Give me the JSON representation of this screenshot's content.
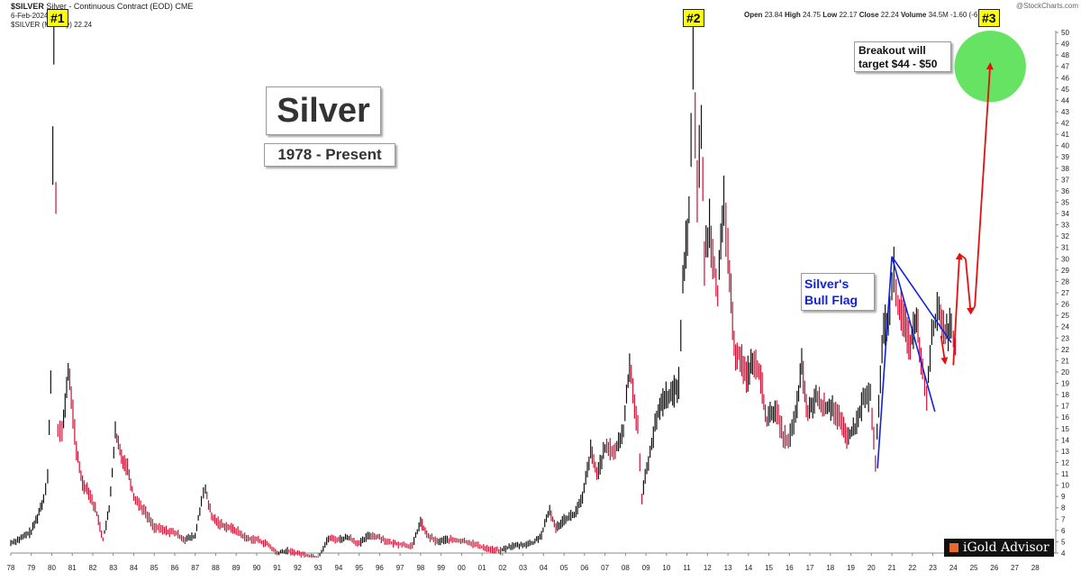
{
  "header": {
    "symbol": "$SILVER",
    "description": "Silver - Continuous Contract (EOD)",
    "exchange": "CME",
    "date": "6-Feb-2024",
    "series_label": "$SILVER (Monthly) 22.24",
    "open_label": "Open",
    "open_value": "23.84",
    "high_label": "High",
    "high_value": "24.75",
    "low_label": "Low",
    "low_value": "22.17",
    "close_label": "Close",
    "close_value": "22.24",
    "volume_label": "Volume",
    "volume_value": "34.5M",
    "change": "-1.60 (-6.71%)",
    "source": "@StockCharts.com"
  },
  "annotations": {
    "title": "Silver",
    "subtitle": "1978 - Present",
    "target_text_1": "Breakout will",
    "target_text_2": "target $44 - $50",
    "flag_text_1": "Silver's",
    "flag_text_2": "Bull Flag",
    "marker_1": "#1",
    "marker_2": "#2",
    "marker_3": "#3"
  },
  "logo_text": "iGold Advisor",
  "colors": {
    "up": "#111111",
    "down": "#cc1133",
    "flag": "#1122dd",
    "projection": "#e21111",
    "target": "#5ee25a",
    "marker_bg": "#ffff00"
  },
  "chart_data": {
    "type": "line",
    "xlabel": "",
    "ylabel": "",
    "x_ticks": [
      "78",
      "79",
      "80",
      "81",
      "82",
      "83",
      "84",
      "85",
      "86",
      "87",
      "88",
      "89",
      "90",
      "91",
      "92",
      "93",
      "94",
      "95",
      "96",
      "97",
      "98",
      "99",
      "00",
      "01",
      "02",
      "03",
      "04",
      "05",
      "06",
      "07",
      "08",
      "09",
      "10",
      "11",
      "12",
      "13",
      "14",
      "15",
      "16",
      "17",
      "18",
      "19",
      "20",
      "21",
      "22",
      "23",
      "24",
      "25",
      "26",
      "27",
      "28"
    ],
    "y_ticks": [
      4,
      5,
      6,
      7,
      8,
      9,
      10,
      11,
      12,
      13,
      14,
      15,
      16,
      17,
      18,
      19,
      20,
      21,
      22,
      23,
      24,
      25,
      26,
      27,
      28,
      29,
      30,
      31,
      32,
      33,
      34,
      35,
      36,
      37,
      38,
      39,
      40,
      41,
      42,
      43,
      44,
      45,
      46,
      47,
      48,
      49,
      50
    ],
    "ylim": [
      4,
      50
    ],
    "xlim": [
      1978,
      2029
    ],
    "grid": false,
    "series": [
      {
        "values": [
          [
            1978.0,
            4.9
          ],
          [
            1978.5,
            5.3
          ],
          [
            1979.0,
            5.9
          ],
          [
            1979.3,
            7.2
          ],
          [
            1979.6,
            8.8
          ],
          [
            1979.8,
            11.0
          ],
          [
            1979.95,
            19.0
          ],
          [
            1980.05,
            39.0
          ],
          [
            1980.1,
            49.0
          ],
          [
            1980.2,
            35.0
          ],
          [
            1980.3,
            15.0
          ],
          [
            1980.5,
            14.5
          ],
          [
            1980.8,
            20.0
          ],
          [
            1980.95,
            18.0
          ],
          [
            1981.2,
            13.0
          ],
          [
            1981.5,
            10.2
          ],
          [
            1981.8,
            9.5
          ],
          [
            1982.2,
            7.5
          ],
          [
            1982.5,
            5.2
          ],
          [
            1982.8,
            7.8
          ],
          [
            1983.1,
            14.6
          ],
          [
            1983.4,
            12.5
          ],
          [
            1983.7,
            11.6
          ],
          [
            1984.0,
            9.0
          ],
          [
            1984.5,
            7.8
          ],
          [
            1985.0,
            6.3
          ],
          [
            1985.5,
            6.0
          ],
          [
            1986.0,
            5.8
          ],
          [
            1986.5,
            5.2
          ],
          [
            1987.0,
            5.5
          ],
          [
            1987.3,
            8.6
          ],
          [
            1987.5,
            9.6
          ],
          [
            1987.8,
            7.2
          ],
          [
            1988.2,
            6.6
          ],
          [
            1988.6,
            6.3
          ],
          [
            1989.0,
            6.0
          ],
          [
            1989.5,
            5.3
          ],
          [
            1990.0,
            5.2
          ],
          [
            1990.5,
            4.8
          ],
          [
            1991.0,
            4.0
          ],
          [
            1991.5,
            4.2
          ],
          [
            1992.0,
            4.0
          ],
          [
            1992.5,
            3.8
          ],
          [
            1993.0,
            3.6
          ],
          [
            1993.5,
            5.3
          ],
          [
            1994.0,
            5.2
          ],
          [
            1994.5,
            5.4
          ],
          [
            1995.0,
            4.8
          ],
          [
            1995.5,
            5.6
          ],
          [
            1996.0,
            5.4
          ],
          [
            1996.5,
            4.9
          ],
          [
            1997.0,
            4.8
          ],
          [
            1997.6,
            4.6
          ],
          [
            1998.0,
            6.8
          ],
          [
            1998.3,
            5.6
          ],
          [
            1998.8,
            5.0
          ],
          [
            1999.3,
            5.2
          ],
          [
            1999.8,
            5.1
          ],
          [
            2000.3,
            5.0
          ],
          [
            2000.9,
            4.6
          ],
          [
            2001.5,
            4.3
          ],
          [
            2001.9,
            4.2
          ],
          [
            2002.4,
            4.6
          ],
          [
            2002.9,
            4.7
          ],
          [
            2003.5,
            4.9
          ],
          [
            2003.9,
            5.6
          ],
          [
            2004.3,
            7.8
          ],
          [
            2004.6,
            6.2
          ],
          [
            2005.0,
            7.0
          ],
          [
            2005.5,
            7.4
          ],
          [
            2005.9,
            8.8
          ],
          [
            2006.3,
            13.0
          ],
          [
            2006.6,
            11.0
          ],
          [
            2007.0,
            13.2
          ],
          [
            2007.5,
            13.0
          ],
          [
            2007.9,
            14.8
          ],
          [
            2008.2,
            20.8
          ],
          [
            2008.6,
            15.0
          ],
          [
            2008.8,
            9.0
          ],
          [
            2009.2,
            13.0
          ],
          [
            2009.6,
            16.5
          ],
          [
            2009.9,
            17.8
          ],
          [
            2010.3,
            18.0
          ],
          [
            2010.6,
            19.0
          ],
          [
            2010.8,
            28.0
          ],
          [
            2011.1,
            34.0
          ],
          [
            2011.3,
            48.5
          ],
          [
            2011.5,
            36.0
          ],
          [
            2011.7,
            42.0
          ],
          [
            2011.85,
            30.0
          ],
          [
            2012.1,
            33.0
          ],
          [
            2012.5,
            27.0
          ],
          [
            2012.8,
            34.5
          ],
          [
            2013.0,
            31.0
          ],
          [
            2013.3,
            22.0
          ],
          [
            2013.6,
            21.5
          ],
          [
            2013.9,
            19.5
          ],
          [
            2014.2,
            21.0
          ],
          [
            2014.6,
            19.5
          ],
          [
            2014.9,
            15.6
          ],
          [
            2015.3,
            16.8
          ],
          [
            2015.7,
            14.4
          ],
          [
            2015.95,
            13.8
          ],
          [
            2016.3,
            16.0
          ],
          [
            2016.6,
            20.5
          ],
          [
            2016.9,
            16.2
          ],
          [
            2017.3,
            17.8
          ],
          [
            2017.7,
            16.8
          ],
          [
            2018.1,
            17.0
          ],
          [
            2018.5,
            15.5
          ],
          [
            2018.8,
            14.2
          ],
          [
            2019.2,
            15.0
          ],
          [
            2019.6,
            17.5
          ],
          [
            2019.95,
            18.0
          ],
          [
            2020.2,
            12.0
          ],
          [
            2020.6,
            24.0
          ],
          [
            2020.9,
            25.0
          ],
          [
            2021.1,
            29.0
          ],
          [
            2021.3,
            26.0
          ],
          [
            2021.6,
            24.5
          ],
          [
            2021.9,
            22.5
          ],
          [
            2022.2,
            25.0
          ],
          [
            2022.5,
            20.0
          ],
          [
            2022.7,
            18.0
          ],
          [
            2022.95,
            23.5
          ],
          [
            2023.3,
            25.5
          ],
          [
            2023.6,
            23.5
          ],
          [
            2023.9,
            23.8
          ],
          [
            2024.1,
            22.24
          ]
        ]
      }
    ],
    "annotations": [
      {
        "label": "#1",
        "x": 1980.1,
        "y": 49
      },
      {
        "label": "#2",
        "x": 2011.3,
        "y": 48.5
      },
      {
        "label": "#3",
        "x": 2025.8,
        "y": 47
      }
    ],
    "bull_flag": {
      "upper": [
        [
          2021.0,
          30.2
        ],
        [
          2023.9,
          22.6
        ]
      ],
      "lower": [
        [
          2020.3,
          11.5
        ],
        [
          2021.0,
          30.2
        ],
        [
          2023.1,
          16.5
        ]
      ]
    },
    "projection": [
      [
        2023.4,
        23.2
      ],
      [
        2023.6,
        20.8
      ],
      [
        2024.0,
        20.6
      ],
      [
        2024.3,
        30.4
      ],
      [
        2024.6,
        30.0
      ],
      [
        2024.85,
        25.2
      ],
      [
        2025.05,
        25.8
      ],
      [
        2025.8,
        47.2
      ]
    ],
    "target_zone": {
      "x": 2025.8,
      "y_low": 44,
      "y_high": 50
    }
  }
}
